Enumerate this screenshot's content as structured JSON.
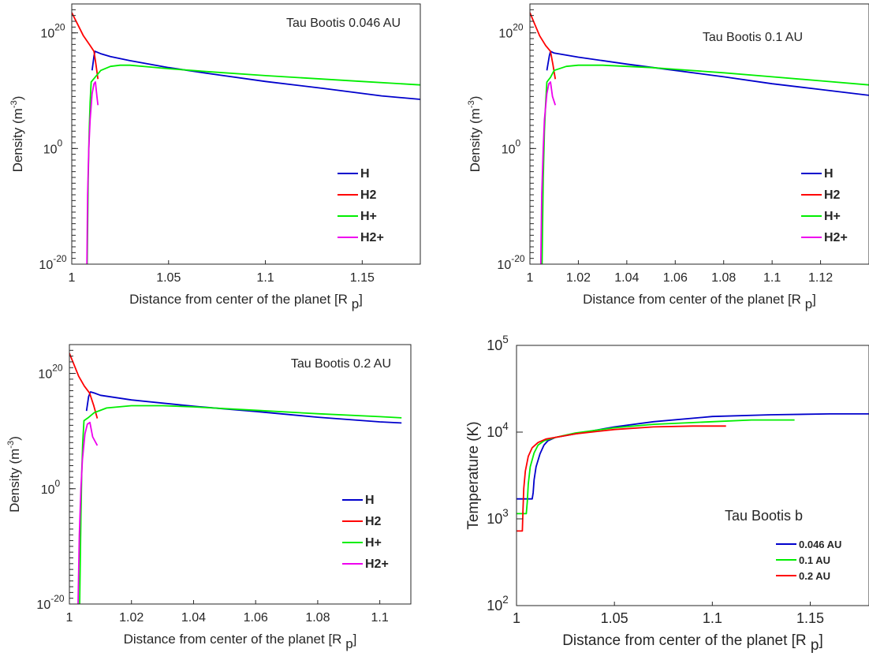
{
  "chart_data": [
    {
      "type": "line",
      "title": "",
      "annotation": "Tau Bootis 0.046 AU",
      "xlabel": "Distance from center of the planet [R p]",
      "ylabel": "Density (m-3)",
      "xlim": [
        1,
        1.18
      ],
      "ylim_exponent": [
        -20,
        25
      ],
      "y_scale": "log",
      "x_ticks": [
        "1",
        "1.05",
        "1.1",
        "1.15"
      ],
      "x_tick_values": [
        1,
        1.05,
        1.1,
        1.15
      ],
      "y_ticks": [
        {
          "base": "10",
          "exp": "-20",
          "value": -20
        },
        {
          "base": "10",
          "exp": "0",
          "value": 0
        },
        {
          "base": "10",
          "exp": "20",
          "value": 20
        }
      ],
      "legend_position": "bottom-right",
      "series": [
        {
          "name": "H",
          "color": "#0000cc",
          "x": [
            1.0105,
            1.0115,
            1.012,
            1.015,
            1.02,
            1.03,
            1.05,
            1.07,
            1.1,
            1.13,
            1.16,
            1.18
          ],
          "log_y": [
            13.5,
            16,
            16.8,
            16.4,
            15.9,
            15.2,
            14.0,
            13.0,
            11.6,
            10.4,
            9.1,
            8.5
          ]
        },
        {
          "name": "H2",
          "color": "#ff0000",
          "x": [
            1.0,
            1.003,
            1.006,
            1.0095,
            1.0115,
            1.0125,
            1.0135
          ],
          "log_y": [
            23.5,
            21.5,
            19.5,
            17.8,
            16.8,
            14.5,
            12.0
          ]
        },
        {
          "name": "H+",
          "color": "#00ee00",
          "x": [
            1.008,
            1.0085,
            1.009,
            1.0095,
            1.01,
            1.012,
            1.015,
            1.02,
            1.025,
            1.03,
            1.04,
            1.05,
            1.07,
            1.1,
            1.15,
            1.18
          ],
          "log_y": [
            -20,
            -5,
            3,
            8,
            11.5,
            12.3,
            13.5,
            14.2,
            14.4,
            14.4,
            14.1,
            13.8,
            13.3,
            12.6,
            11.6,
            11.0
          ]
        },
        {
          "name": "H2+",
          "color": "#ee00ee",
          "x": [
            1.0078,
            1.0082,
            1.0088,
            1.0095,
            1.0105,
            1.0115,
            1.0122,
            1.013,
            1.0135
          ],
          "log_y": [
            -20,
            -8,
            0,
            5,
            9.5,
            11.2,
            11.5,
            9.0,
            7.5
          ]
        }
      ]
    },
    {
      "type": "line",
      "title": "",
      "annotation": "Tau Bootis 0.1 AU",
      "xlabel": "Distance from center of the planet [R p]",
      "ylabel": "Density (m-3)",
      "xlim": [
        1,
        1.14
      ],
      "ylim_exponent": [
        -20,
        25
      ],
      "y_scale": "log",
      "x_ticks": [
        "1",
        "1.02",
        "1.04",
        "1.06",
        "1.08",
        "1.1",
        "1.12"
      ],
      "x_tick_values": [
        1,
        1.02,
        1.04,
        1.06,
        1.08,
        1.1,
        1.12
      ],
      "y_ticks": [
        {
          "base": "10",
          "exp": "-20",
          "value": -20
        },
        {
          "base": "10",
          "exp": "0",
          "value": 0
        },
        {
          "base": "10",
          "exp": "20",
          "value": 20
        }
      ],
      "legend_position": "bottom-right",
      "series": [
        {
          "name": "H",
          "color": "#0000cc",
          "x": [
            1.007,
            1.008,
            1.0085,
            1.01,
            1.02,
            1.04,
            1.06,
            1.08,
            1.1,
            1.12,
            1.14
          ],
          "log_y": [
            13.5,
            16,
            16.8,
            16.5,
            15.8,
            14.6,
            13.5,
            12.4,
            11.2,
            10.2,
            9.2
          ]
        },
        {
          "name": "H2",
          "color": "#ff0000",
          "x": [
            1.0,
            1.002,
            1.004,
            1.0065,
            1.0085,
            1.0095,
            1.0105
          ],
          "log_y": [
            23.5,
            21.5,
            19.5,
            17.8,
            16.8,
            14.5,
            12.0
          ]
        },
        {
          "name": "H+",
          "color": "#00ee00",
          "x": [
            1.005,
            1.0055,
            1.006,
            1.0065,
            1.007,
            1.0085,
            1.01,
            1.015,
            1.02,
            1.03,
            1.04,
            1.05,
            1.06,
            1.08,
            1.1,
            1.12,
            1.14
          ],
          "log_y": [
            -20,
            -5,
            3,
            8,
            11.5,
            12.3,
            13.5,
            14.2,
            14.4,
            14.4,
            14.2,
            14.0,
            13.7,
            13.1,
            12.4,
            11.7,
            11.0
          ]
        },
        {
          "name": "H2+",
          "color": "#ee00ee",
          "x": [
            1.0045,
            1.0049,
            1.0055,
            1.006,
            1.007,
            1.0078,
            1.0085,
            1.0093,
            1.0105
          ],
          "log_y": [
            -20,
            -8,
            0,
            5,
            9.5,
            11.2,
            11.5,
            9.0,
            7.5
          ]
        }
      ]
    },
    {
      "type": "line",
      "title": "",
      "annotation": "Tau Bootis 0.2 AU",
      "xlabel": "Distance from center of the planet [R p]",
      "ylabel": "Density (m-3)",
      "xlim": [
        1,
        1.11
      ],
      "ylim_exponent": [
        -20,
        25
      ],
      "y_scale": "log",
      "x_ticks": [
        "1",
        "1.02",
        "1.04",
        "1.06",
        "1.08",
        "1.1"
      ],
      "x_tick_values": [
        1,
        1.02,
        1.04,
        1.06,
        1.08,
        1.1
      ],
      "y_ticks": [
        {
          "base": "10",
          "exp": "-20",
          "value": -20
        },
        {
          "base": "10",
          "exp": "0",
          "value": 0
        },
        {
          "base": "10",
          "exp": "20",
          "value": 20
        }
      ],
      "legend_position": "bottom-right",
      "series": [
        {
          "name": "H",
          "color": "#0000cc",
          "x": [
            1.0055,
            1.0062,
            1.0068,
            1.008,
            1.01,
            1.02,
            1.04,
            1.06,
            1.08,
            1.1,
            1.107
          ],
          "log_y": [
            13.5,
            16,
            16.8,
            16.6,
            16.2,
            15.4,
            14.3,
            13.4,
            12.4,
            11.6,
            11.4
          ]
        },
        {
          "name": "H2",
          "color": "#ff0000",
          "x": [
            1.0,
            1.0015,
            1.003,
            1.0048,
            1.0065,
            1.0078,
            1.009
          ],
          "log_y": [
            23.5,
            21.5,
            19.5,
            17.8,
            16.6,
            14.5,
            12.2
          ]
        },
        {
          "name": "H+",
          "color": "#00ee00",
          "x": [
            1.0033,
            1.0037,
            1.004,
            1.0043,
            1.0047,
            1.006,
            1.008,
            1.012,
            1.02,
            1.03,
            1.04,
            1.06,
            1.08,
            1.1,
            1.107
          ],
          "log_y": [
            -20,
            -5,
            3,
            8,
            11.8,
            12.3,
            13.2,
            14.0,
            14.4,
            14.4,
            14.2,
            13.6,
            13.0,
            12.5,
            12.3
          ]
        },
        {
          "name": "H2+",
          "color": "#ee00ee",
          "x": [
            1.0028,
            1.0032,
            1.0037,
            1.0042,
            1.005,
            1.0058,
            1.0066,
            1.0075,
            1.009
          ],
          "log_y": [
            -20,
            -8,
            0,
            5,
            9.5,
            11.2,
            11.5,
            9.0,
            7.5
          ]
        }
      ]
    },
    {
      "type": "line",
      "title": "",
      "annotation": "Tau Bootis b",
      "xlabel": "Distance from center of the planet [R p]",
      "ylabel": "Temperature (K)",
      "xlim": [
        1,
        1.18
      ],
      "ylim_exponent": [
        2,
        5
      ],
      "y_scale": "log",
      "x_ticks": [
        "1",
        "1.05",
        "1.1",
        "1.15"
      ],
      "x_tick_values": [
        1,
        1.05,
        1.1,
        1.15
      ],
      "y_ticks": [
        {
          "base": "10",
          "exp": "2",
          "value": 2
        },
        {
          "base": "10",
          "exp": "3",
          "value": 3
        },
        {
          "base": "10",
          "exp": "4",
          "value": 4
        },
        {
          "base": "10",
          "exp": "5",
          "value": 5
        }
      ],
      "legend_position": "bottom-right",
      "series": [
        {
          "name": "0.046 AU",
          "color": "#0000cc",
          "x": [
            1.0,
            1.008,
            1.0085,
            1.009,
            1.01,
            1.012,
            1.014,
            1.016,
            1.02,
            1.03,
            1.05,
            1.07,
            1.1,
            1.13,
            1.16,
            1.18
          ],
          "log_y": [
            3.23,
            3.23,
            3.3,
            3.45,
            3.6,
            3.75,
            3.85,
            3.9,
            3.94,
            3.98,
            4.06,
            4.12,
            4.18,
            4.2,
            4.21,
            4.21
          ]
        },
        {
          "name": "0.1 AU",
          "color": "#00ee00",
          "x": [
            1.0,
            1.005,
            1.0055,
            1.006,
            1.007,
            1.009,
            1.011,
            1.014,
            1.02,
            1.03,
            1.05,
            1.07,
            1.1,
            1.12,
            1.142
          ],
          "log_y": [
            3.06,
            3.06,
            3.2,
            3.4,
            3.6,
            3.76,
            3.85,
            3.9,
            3.94,
            3.99,
            4.05,
            4.09,
            4.12,
            4.14,
            4.14
          ]
        },
        {
          "name": "0.2 AU",
          "color": "#ff0000",
          "x": [
            1.0,
            1.003,
            1.0033,
            1.0037,
            1.0045,
            1.006,
            1.008,
            1.011,
            1.015,
            1.02,
            1.03,
            1.05,
            1.07,
            1.09,
            1.107
          ],
          "log_y": [
            2.86,
            2.86,
            3.1,
            3.35,
            3.55,
            3.72,
            3.82,
            3.88,
            3.92,
            3.94,
            3.98,
            4.03,
            4.06,
            4.07,
            4.07
          ]
        }
      ]
    }
  ]
}
